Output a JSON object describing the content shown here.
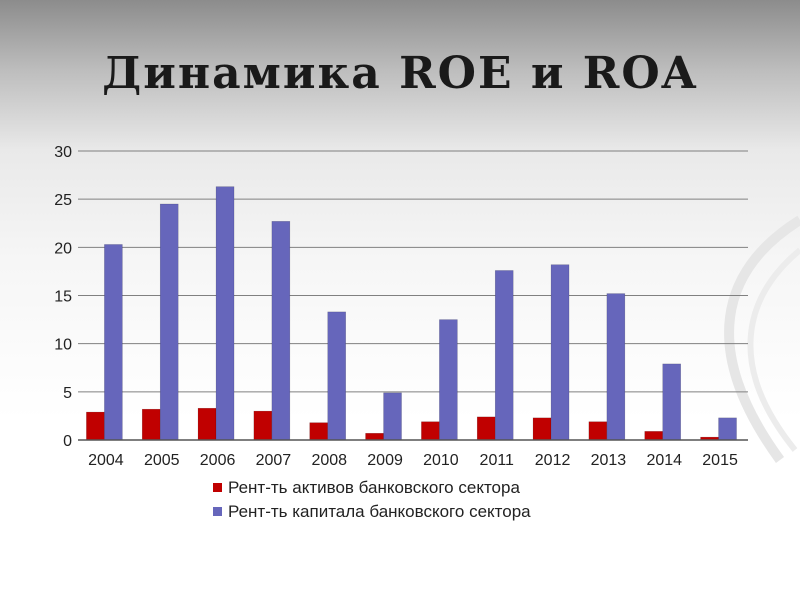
{
  "slide": {
    "title": "Динамика ROE  и ROA"
  },
  "colors": {
    "roa": "#c00000",
    "roe": "#6666bb",
    "grid": "#808080",
    "axis_text": "#222222"
  },
  "chart_data": {
    "type": "bar",
    "categories": [
      "2004",
      "2005",
      "2006",
      "2007",
      "2008",
      "2009",
      "2010",
      "2011",
      "2012",
      "2013",
      "2014",
      "2015"
    ],
    "series": [
      {
        "name": "Рент-ть активов банковского сектора",
        "values": [
          2.9,
          3.2,
          3.3,
          3.0,
          1.8,
          0.7,
          1.9,
          2.4,
          2.3,
          1.9,
          0.9,
          0.3
        ]
      },
      {
        "name": "Рент-ть капитала банковского сектора",
        "values": [
          20.3,
          24.5,
          26.3,
          22.7,
          13.3,
          4.9,
          12.5,
          17.6,
          18.2,
          15.2,
          7.9,
          2.3
        ]
      }
    ],
    "ylim": [
      0,
      30
    ],
    "yticks": [
      "0",
      "5",
      "10",
      "15",
      "20",
      "25",
      "30"
    ],
    "grid": true,
    "legend_position": "bottom"
  }
}
